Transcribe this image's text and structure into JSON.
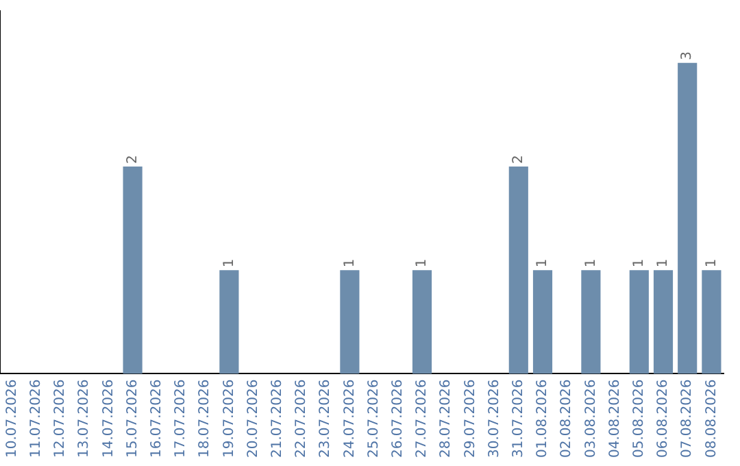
{
  "chart_data": {
    "type": "bar",
    "categories": [
      "10.07.2026",
      "11.07.2026",
      "12.07.2026",
      "13.07.2026",
      "14.07.2026",
      "15.07.2026",
      "16.07.2026",
      "17.07.2026",
      "18.07.2026",
      "19.07.2026",
      "20.07.2026",
      "21.07.2026",
      "22.07.2026",
      "23.07.2026",
      "24.07.2026",
      "25.07.2026",
      "26.07.2026",
      "27.07.2026",
      "28.07.2026",
      "29.07.2026",
      "30.07.2026",
      "31.07.2026",
      "01.08.2026",
      "02.08.2026",
      "03.08.2026",
      "04.08.2026",
      "05.08.2026",
      "06.08.2026",
      "07.08.2026",
      "08.08.2026"
    ],
    "values": [
      0,
      0,
      0,
      0,
      0,
      2,
      0,
      0,
      0,
      1,
      0,
      0,
      0,
      0,
      1,
      0,
      0,
      1,
      0,
      0,
      0,
      2,
      1,
      0,
      1,
      0,
      1,
      1,
      3,
      1
    ],
    "value_labels": [
      null,
      null,
      null,
      null,
      null,
      "2",
      null,
      null,
      null,
      "1",
      null,
      null,
      null,
      null,
      "1",
      null,
      null,
      "1",
      null,
      null,
      null,
      "2",
      "1",
      null,
      "1",
      null,
      "1",
      "1",
      "3",
      "1"
    ],
    "color": "#6d8dac",
    "grid": false,
    "legend": false,
    "tick_labels": "x"
  }
}
